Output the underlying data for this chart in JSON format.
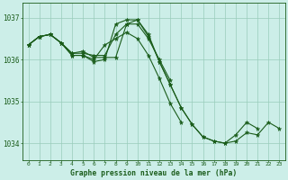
{
  "background_color": "#cceee8",
  "grid_color": "#99ccbb",
  "line_color": "#1a5c1a",
  "marker_color": "#1a5c1a",
  "xlabel": "Graphe pression niveau de la mer (hPa)",
  "xlabel_color": "#1a5c1a",
  "xlim": [
    -0.5,
    23.5
  ],
  "ylim": [
    1033.6,
    1037.35
  ],
  "yticks": [
    1034,
    1035,
    1036,
    1037
  ],
  "xticks": [
    0,
    1,
    2,
    3,
    4,
    5,
    6,
    7,
    8,
    9,
    10,
    11,
    12,
    13,
    14,
    15,
    16,
    17,
    18,
    19,
    20,
    21,
    22,
    23
  ],
  "series": [
    {
      "x": [
        0,
        1,
        2,
        3,
        4,
        5,
        6,
        7,
        8,
        9,
        10,
        11,
        12,
        13,
        14,
        15,
        16,
        17,
        18,
        19,
        20,
        21,
        22,
        23
      ],
      "y": [
        1036.35,
        1036.55,
        1036.6,
        1036.4,
        1036.1,
        1036.1,
        1035.95,
        1036.0,
        1036.85,
        1036.95,
        1036.95,
        1036.6,
        1035.95,
        1035.4,
        1034.85,
        1034.45,
        1034.15,
        1034.05,
        1034.0,
        1034.05,
        1034.25,
        1034.2,
        1034.5,
        1034.35
      ]
    },
    {
      "x": [
        0,
        1,
        2,
        3,
        4,
        5,
        6,
        7,
        8,
        9,
        10,
        11,
        12,
        13,
        14,
        15,
        16,
        17,
        18,
        19,
        20,
        21
      ],
      "y": [
        1036.35,
        1036.55,
        1036.6,
        1036.4,
        1036.15,
        1036.2,
        1036.05,
        1036.05,
        1036.05,
        1036.85,
        1036.95,
        1036.55,
        1035.95,
        1035.4,
        1034.85,
        1034.45,
        1034.15,
        1034.05,
        1034.0,
        1034.2,
        1034.5,
        1034.35
      ]
    },
    {
      "x": [
        0,
        1,
        2,
        3,
        4,
        5,
        6,
        7,
        8,
        9,
        10,
        11,
        12,
        13,
        14
      ],
      "y": [
        1036.35,
        1036.55,
        1036.6,
        1036.4,
        1036.1,
        1036.1,
        1036.0,
        1036.35,
        1036.5,
        1036.65,
        1036.5,
        1036.1,
        1035.55,
        1034.95,
        1034.5
      ]
    },
    {
      "x": [
        0,
        1,
        2,
        3,
        4,
        5,
        6,
        7,
        8,
        9,
        10,
        11,
        12,
        13
      ],
      "y": [
        1036.35,
        1036.55,
        1036.6,
        1036.4,
        1036.15,
        1036.15,
        1036.1,
        1036.1,
        1036.6,
        1036.85,
        1036.85,
        1036.5,
        1036.0,
        1035.5
      ]
    }
  ]
}
